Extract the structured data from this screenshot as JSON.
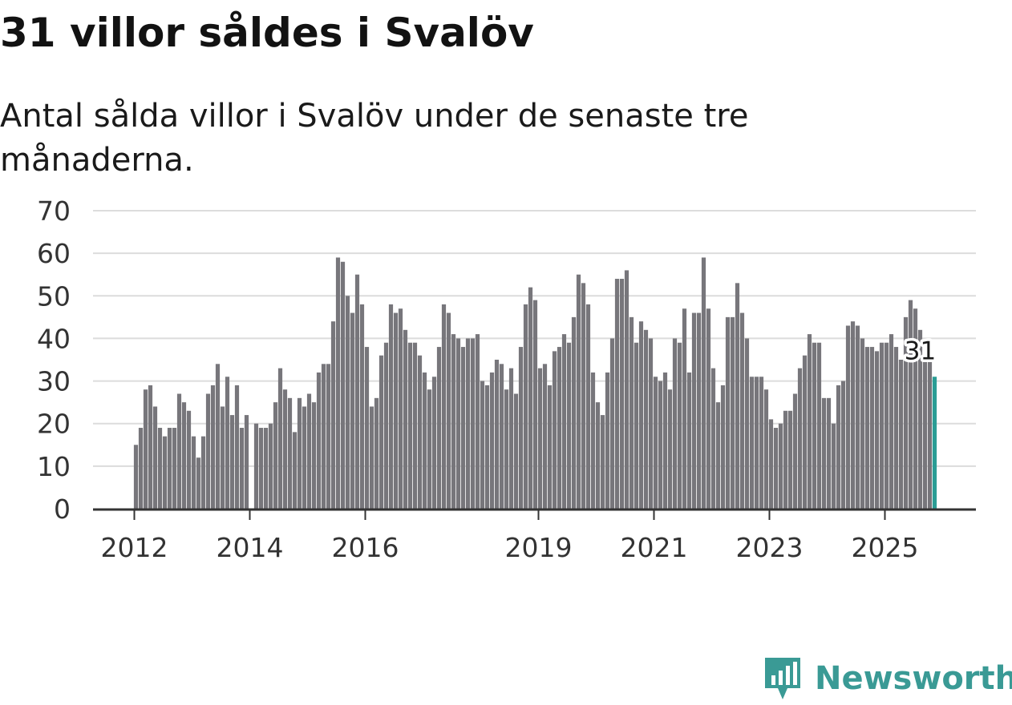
{
  "title": "31 villor såldes i Svalöv",
  "subtitle": "Antal sålda villor i Svalöv under de senaste tre månaderna.",
  "brand": {
    "name": "Newsworthy",
    "logo_icon": "newsworthy-chart-logo-icon",
    "color": "#3a9a95"
  },
  "colors": {
    "bar": "#77767b",
    "highlight": "#2a9d95",
    "grid": "#dcdcdc",
    "axis": "#333333"
  },
  "chart_data": {
    "type": "bar",
    "title": "31 villor såldes i Svalöv",
    "subtitle": "Antal sålda villor i Svalöv under de senaste tre månaderna.",
    "xlabel": "",
    "ylabel": "",
    "ylim": [
      0,
      70
    ],
    "yticks": [
      0,
      10,
      20,
      30,
      40,
      50,
      60,
      70
    ],
    "grid": true,
    "start": "2012-01",
    "xticks": [
      {
        "label": "2012",
        "index": 0
      },
      {
        "label": "2014",
        "index": 24
      },
      {
        "label": "2016",
        "index": 48
      },
      {
        "label": "2019",
        "index": 84
      },
      {
        "label": "2021",
        "index": 108
      },
      {
        "label": "2023",
        "index": 132
      },
      {
        "label": "2025",
        "index": 156
      }
    ],
    "values": [
      15,
      19,
      28,
      29,
      24,
      19,
      17,
      19,
      19,
      27,
      25,
      23,
      17,
      12,
      17,
      27,
      29,
      34,
      24,
      31,
      22,
      29,
      19,
      22,
      0,
      20,
      19,
      19,
      20,
      25,
      33,
      28,
      26,
      18,
      26,
      24,
      27,
      25,
      32,
      34,
      34,
      44,
      59,
      58,
      50,
      46,
      55,
      48,
      38,
      24,
      26,
      36,
      39,
      48,
      46,
      47,
      42,
      39,
      39,
      36,
      32,
      28,
      31,
      38,
      48,
      46,
      41,
      40,
      38,
      40,
      40,
      41,
      30,
      29,
      32,
      35,
      34,
      28,
      33,
      27,
      38,
      48,
      52,
      49,
      33,
      34,
      29,
      37,
      38,
      41,
      39,
      45,
      55,
      53,
      48,
      32,
      25,
      22,
      32,
      40,
      54,
      54,
      56,
      45,
      39,
      44,
      42,
      40,
      31,
      30,
      32,
      28,
      40,
      39,
      47,
      32,
      46,
      46,
      59,
      47,
      33,
      25,
      29,
      45,
      45,
      53,
      46,
      40,
      31,
      31,
      31,
      28,
      21,
      19,
      20,
      23,
      23,
      27,
      33,
      36,
      41,
      39,
      39,
      26,
      26,
      20,
      29,
      30,
      43,
      44,
      43,
      40,
      38,
      38,
      37,
      39,
      39,
      41,
      38,
      35,
      45,
      49,
      47,
      42,
      36,
      35,
      31
    ],
    "highlight": {
      "index": 166,
      "value": 31,
      "label": "31"
    }
  }
}
